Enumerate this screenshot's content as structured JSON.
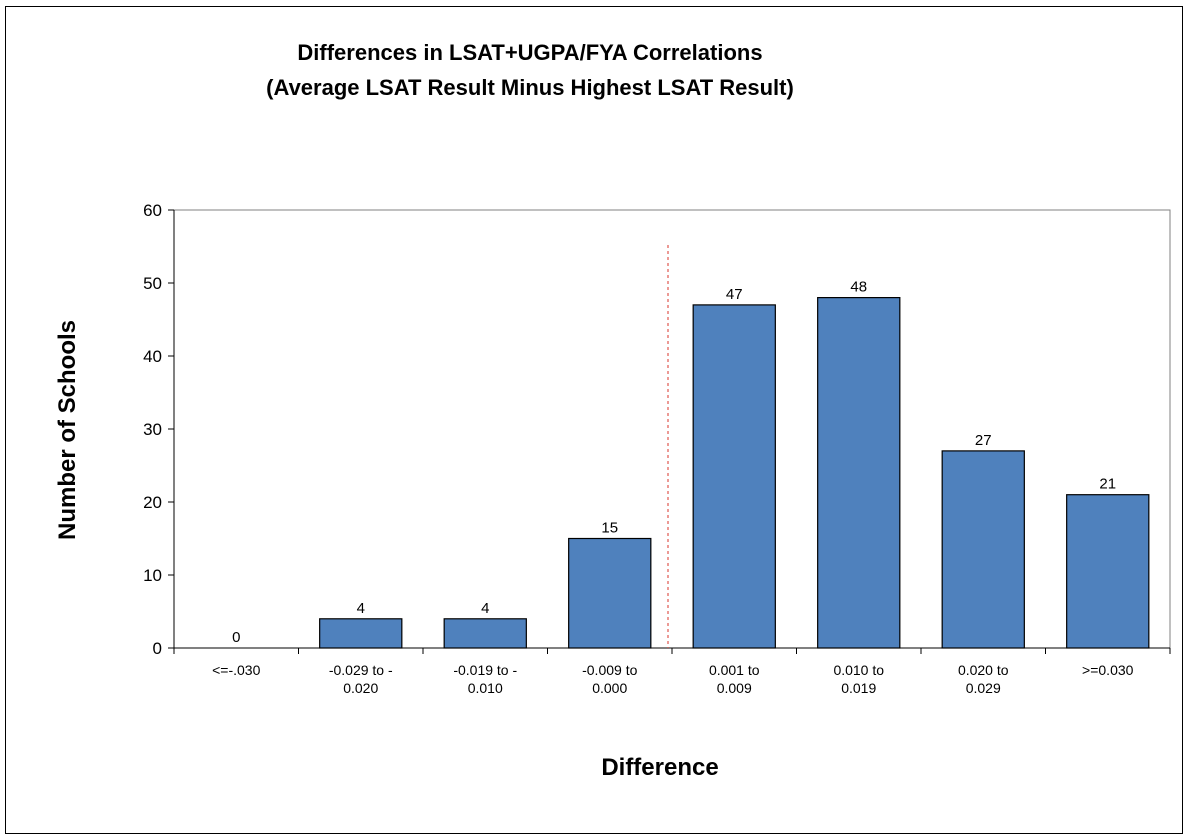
{
  "chart_data": {
    "type": "bar",
    "title": [
      "Differences in LSAT+UGPA/FYA Correlations",
      "(Average LSAT Result Minus Highest LSAT Result)"
    ],
    "xlabel": "Difference",
    "ylabel": "Number of Schools",
    "categories": [
      [
        "<=-.030"
      ],
      [
        "-0.029 to -",
        "0.020"
      ],
      [
        "-0.019 to -",
        "0.010"
      ],
      [
        "-0.009 to",
        "0.000"
      ],
      [
        "0.001 to",
        "0.009"
      ],
      [
        "0.010 to",
        "0.019"
      ],
      [
        "0.020 to",
        "0.029"
      ],
      [
        ">=0.030"
      ]
    ],
    "values": [
      0,
      4,
      4,
      15,
      47,
      48,
      27,
      21
    ],
    "ylim": [
      0,
      60
    ],
    "yticks": [
      0,
      10,
      20,
      30,
      40,
      50,
      60
    ],
    "grid": false,
    "legend": "none",
    "reference_line": "dashed vertical line between -0.009 to 0.000 and 0.001 to 0.009",
    "colors": {
      "bar": "#4f81bd",
      "bar_edge": "#000000",
      "reference_line": "#e0574f"
    }
  }
}
